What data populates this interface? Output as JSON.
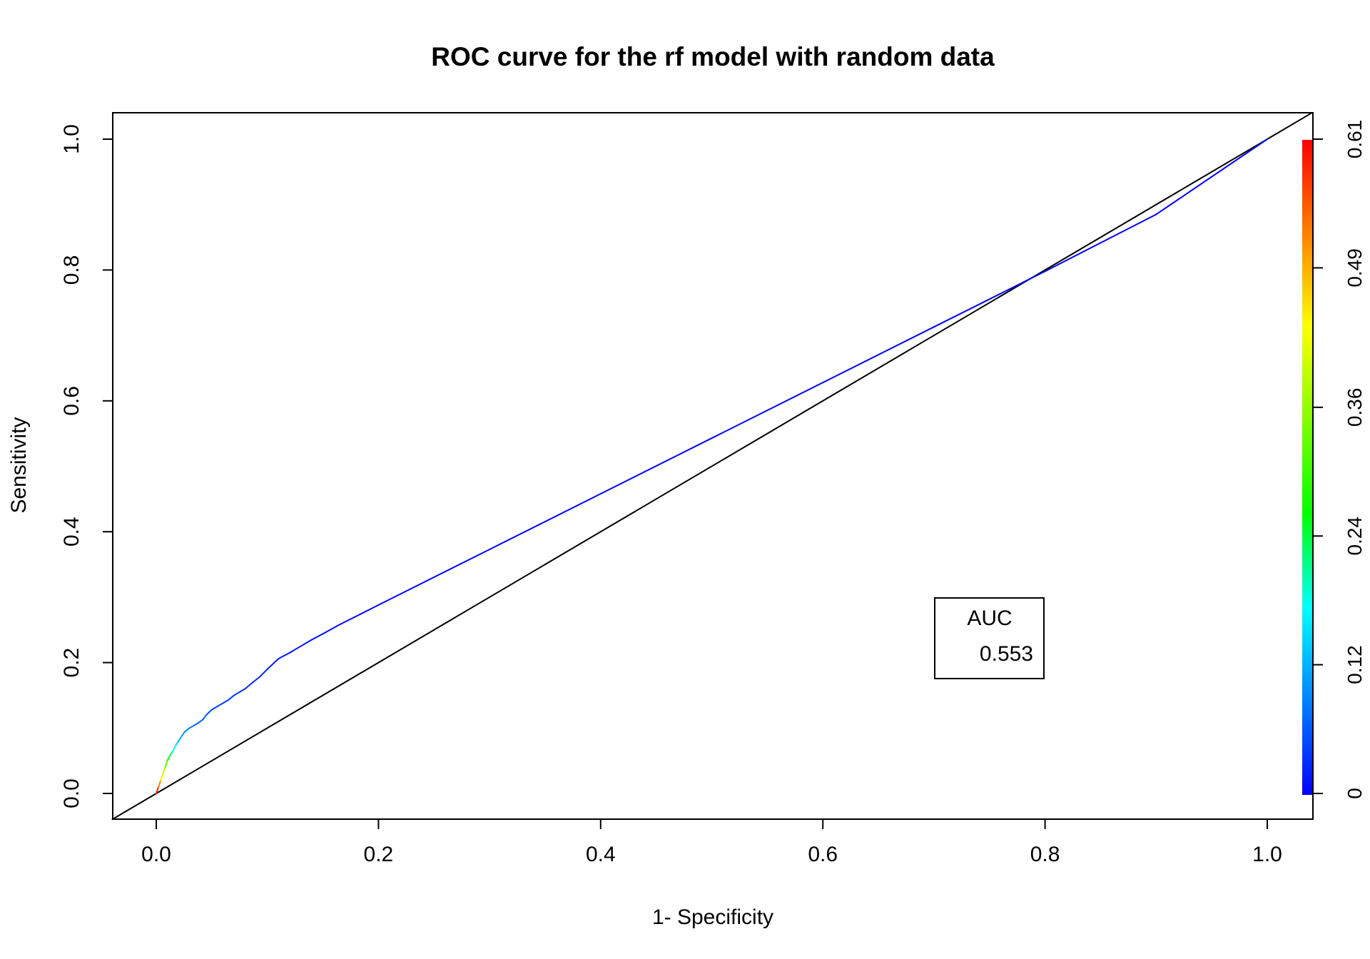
{
  "chart_data": {
    "type": "line",
    "title": "ROC curve for the rf model with random data",
    "xlabel": "1- Specificity",
    "ylabel": "Sensitivity",
    "xlim": [
      0,
      1
    ],
    "ylim": [
      0,
      1
    ],
    "x_ticks": [
      "0.0",
      "0.2",
      "0.4",
      "0.6",
      "0.8",
      "1.0"
    ],
    "y_ticks": [
      "0.0",
      "0.2",
      "0.4",
      "0.6",
      "0.8",
      "1.0"
    ],
    "grid": false,
    "legend": {
      "title": "AUC",
      "value": "0.553",
      "placement": "bottom-right"
    },
    "colorbar": {
      "placement": "right",
      "min": 0,
      "max": 0.61,
      "tick_values": [
        0,
        0.12,
        0.24,
        0.36,
        0.49,
        0.61
      ],
      "tick_labels": [
        "0",
        "0.12",
        "0.24",
        "0.36",
        "0.49",
        "0.61"
      ],
      "colors": [
        "#0000ff",
        "#0080ff",
        "#00ffff",
        "#00ff00",
        "#80ff00",
        "#ffff00",
        "#ff8000",
        "#ff0000"
      ]
    },
    "series": [
      {
        "color_by": "cutoff",
        "x": [
          0,
          0.002,
          0.004,
          0.006,
          0.008,
          0.01,
          0.012,
          0.015,
          0.018,
          0.02,
          0.023,
          0.026,
          0.03,
          0.034,
          0.038,
          0.042,
          0.045,
          0.05,
          0.055,
          0.06,
          0.065,
          0.07,
          0.075,
          0.08,
          0.087,
          0.093,
          0.1,
          0.11,
          0.12,
          0.13,
          0.14,
          0.15,
          0.165,
          0.2,
          0.3,
          0.4,
          0.5,
          0.6,
          0.7,
          0.8,
          0.9,
          1.0
        ],
        "y": [
          0,
          0.01,
          0.02,
          0.03,
          0.04,
          0.05,
          0.057,
          0.065,
          0.075,
          0.08,
          0.088,
          0.095,
          0.1,
          0.104,
          0.108,
          0.113,
          0.12,
          0.128,
          0.133,
          0.138,
          0.143,
          0.15,
          0.155,
          0.16,
          0.17,
          0.178,
          0.19,
          0.206,
          0.215,
          0.225,
          0.235,
          0.244,
          0.258,
          0.288,
          0.373,
          0.458,
          0.543,
          0.628,
          0.713,
          0.798,
          0.885,
          1.0
        ],
        "cutoff": [
          0.61,
          0.56,
          0.48,
          0.42,
          0.36,
          0.3,
          0.25,
          0.2,
          0.16,
          0.13,
          0.11,
          0.095,
          0.085,
          0.075,
          0.068,
          0.062,
          0.056,
          0.05,
          0.046,
          0.042,
          0.038,
          0.035,
          0.032,
          0.03,
          0.027,
          0.025,
          0.022,
          0.019,
          0.016,
          0.013,
          0.01,
          0.008,
          0.006,
          0.004,
          0.003,
          0.0025,
          0.002,
          0.0015,
          0.001,
          0.0007,
          0.0004,
          0
        ]
      }
    ],
    "reference_line": {
      "x": [
        0,
        1
      ],
      "y": [
        0,
        1
      ]
    }
  }
}
